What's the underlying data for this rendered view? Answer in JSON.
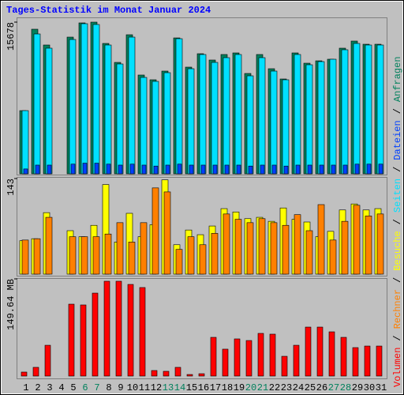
{
  "legend_separator": "/",
  "chart_data": [
    {
      "type": "bar",
      "title": "Tages-Statistik im Monat Januar 2024",
      "ylim": [
        0,
        15678
      ],
      "yticks": [
        15678
      ],
      "series": [
        {
          "name": "Anfragen",
          "color": "#00805c",
          "values": [
            6530,
            14944,
            13311,
            0,
            14127,
            15597,
            15678,
            13474,
            11514,
            14372,
            10208,
            9718,
            10616,
            14045,
            11024,
            12412,
            11759,
            12331,
            12494,
            10371,
            12331,
            10861,
            9799,
            12494,
            11432,
            11677,
            11841,
            12984,
            13719,
            13392,
            13392
          ]
        },
        {
          "name": "Seiten",
          "color": "#00e0ff",
          "values": [
            6530,
            14454,
            12984,
            0,
            13882,
            15515,
            15434,
            13311,
            11351,
            14127,
            9962,
            9554,
            10452,
            13964,
            10861,
            12331,
            11514,
            12004,
            12331,
            10126,
            12004,
            10616,
            9718,
            12331,
            11269,
            11596,
            11841,
            12821,
            13474,
            13311,
            13311
          ]
        },
        {
          "name": "Dateien",
          "color": "#0040ff",
          "values": [
            500,
            900,
            900,
            0,
            1000,
            1100,
            1100,
            1000,
            900,
            1000,
            900,
            800,
            900,
            1000,
            900,
            900,
            900,
            900,
            900,
            800,
            900,
            900,
            800,
            900,
            900,
            900,
            900,
            900,
            1000,
            1000,
            1000
          ]
        }
      ]
    },
    {
      "type": "bar",
      "ylim": [
        0,
        143
      ],
      "yticks": [
        143
      ],
      "series": [
        {
          "name": "Besuche",
          "color": "#ffff00",
          "values": [
            50,
            53,
            92,
            0,
            65,
            56,
            73,
            134,
            48,
            91,
            56,
            74,
            141,
            44,
            66,
            59,
            72,
            98,
            93,
            83,
            85,
            79,
            99,
            82,
            78,
            56,
            64,
            96,
            105,
            96,
            98
          ]
        },
        {
          "name": "Rechner",
          "color": "#ff8000",
          "values": [
            51,
            53,
            85,
            0,
            56,
            56,
            56,
            60,
            77,
            48,
            77,
            129,
            123,
            37,
            56,
            44,
            61,
            90,
            82,
            77,
            83,
            77,
            73,
            89,
            65,
            104,
            51,
            79,
            103,
            87,
            90
          ]
        }
      ]
    },
    {
      "type": "bar",
      "ylim": [
        0,
        149.64
      ],
      "yticks": [
        {
          "value": 149.64,
          "label": "149.64 MB"
        }
      ],
      "categories": [
        "1",
        "2",
        "3",
        "4",
        "5",
        "6",
        "7",
        "8",
        "9",
        "10",
        "11",
        "12",
        "13",
        "14",
        "15",
        "16",
        "17",
        "18",
        "19",
        "20",
        "21",
        "22",
        "23",
        "24",
        "25",
        "26",
        "27",
        "28",
        "29",
        "30",
        "31"
      ],
      "label_colors": [
        "#000000",
        "#000000",
        "#000000",
        "#000000",
        "#000000",
        "#00805c",
        "#00805c",
        "#000000",
        "#000000",
        "#000000",
        "#000000",
        "#000000",
        "#00805c",
        "#00805c",
        "#000000",
        "#000000",
        "#000000",
        "#000000",
        "#000000",
        "#00805c",
        "#00805c",
        "#000000",
        "#000000",
        "#000000",
        "#000000",
        "#000000",
        "#00805c",
        "#00805c",
        "#000000",
        "#000000",
        "#000000"
      ],
      "series": [
        {
          "name": "Volumen",
          "color": "#ff0000",
          "values": [
            6.1,
            13.4,
            47.4,
            0,
            110.7,
            109.5,
            127.7,
            146,
            146,
            141.1,
            136.3,
            8.5,
            7.3,
            13.4,
            2.4,
            3.6,
            59.6,
            41.4,
            57.2,
            54.7,
            65.7,
            64.5,
            30.4,
            47.4,
            75.4,
            75.4,
            68.1,
            59.6,
            43.8,
            46.2,
            46.2
          ]
        }
      ]
    }
  ]
}
